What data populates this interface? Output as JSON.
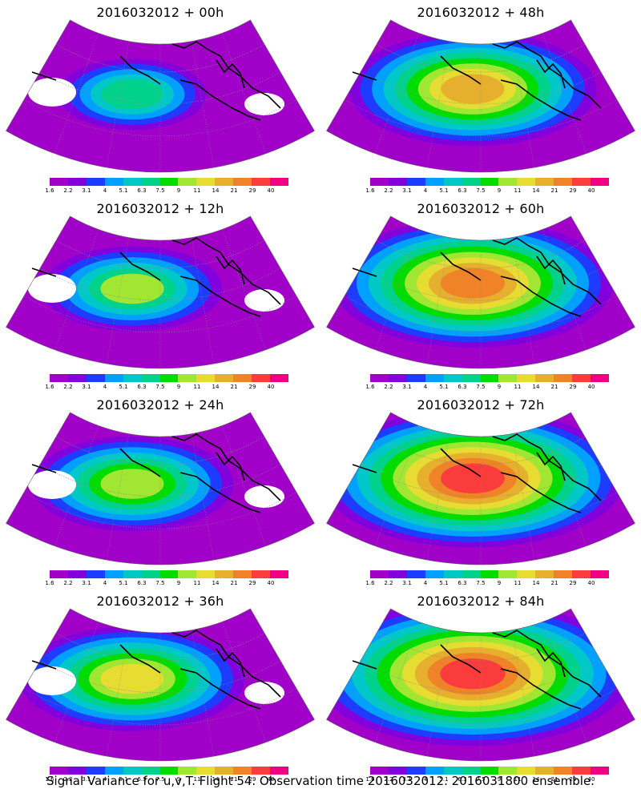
{
  "footer": "Signal Variance for u,v,T. Flight 54. Observation time 2016032012. 2016031800 ensemble.",
  "colorbar": {
    "labels": [
      "1.6",
      "2.2",
      "3.1",
      "4",
      "5.1",
      "6.3",
      "7.5",
      "9",
      "11",
      "14",
      "21",
      "29",
      "40"
    ],
    "colors": [
      "#a000c8",
      "#8200dc",
      "#1e3cff",
      "#00a0ff",
      "#00c8c8",
      "#00d28c",
      "#00dc00",
      "#a0e632",
      "#e6dc32",
      "#e6af2d",
      "#f08228",
      "#fa3c3c",
      "#f00082"
    ]
  },
  "panels": [
    {
      "title": "2016032012 + 00h",
      "lead": "00h",
      "intensity": 0.15
    },
    {
      "title": "2016032012 + 48h",
      "lead": "48h",
      "intensity": 0.6
    },
    {
      "title": "2016032012 + 12h",
      "lead": "12h",
      "intensity": 0.3
    },
    {
      "title": "2016032012 + 60h",
      "lead": "60h",
      "intensity": 0.75
    },
    {
      "title": "2016032012 + 24h",
      "lead": "24h",
      "intensity": 0.4
    },
    {
      "title": "2016032012 + 72h",
      "lead": "72h",
      "intensity": 0.85
    },
    {
      "title": "2016032012 + 36h",
      "lead": "36h",
      "intensity": 0.5
    },
    {
      "title": "2016032012 + 84h",
      "lead": "84h",
      "intensity": 0.92
    }
  ]
}
